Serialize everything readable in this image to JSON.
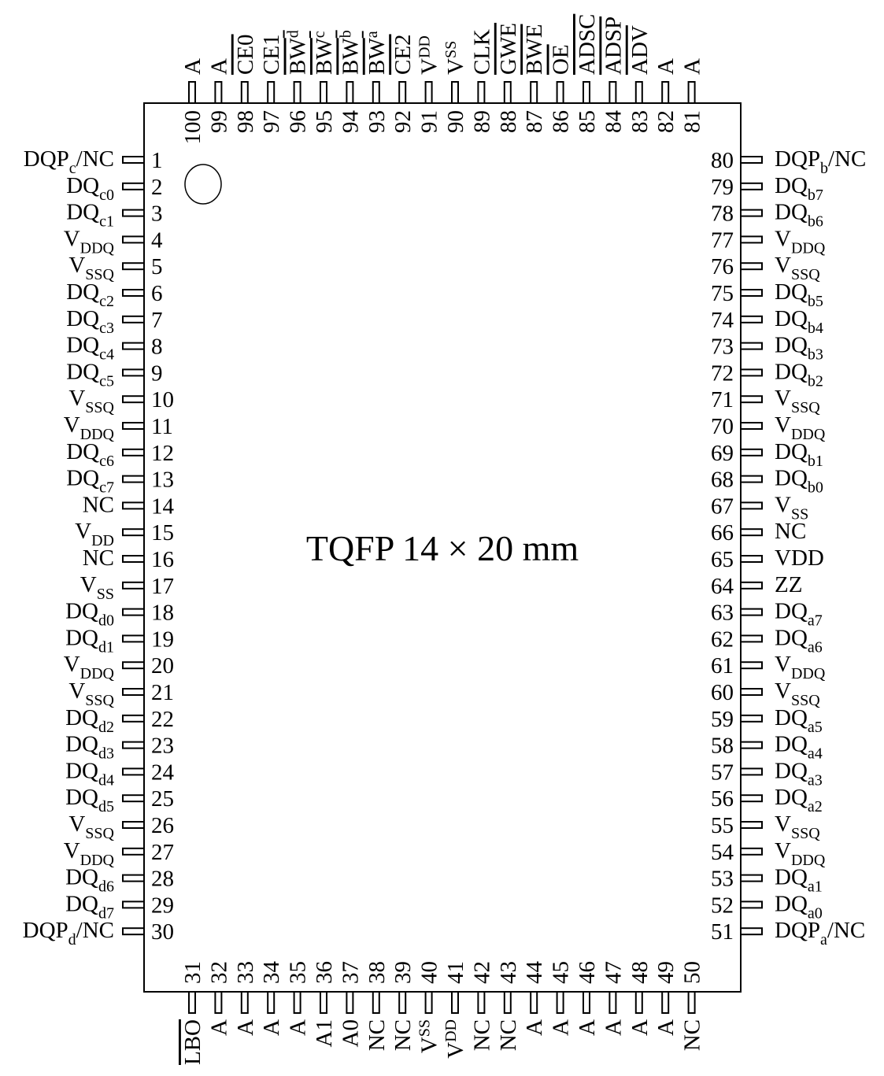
{
  "package_label": "TQFP 14 × 20 mm",
  "pins": {
    "left": [
      {
        "n": "1",
        "name": [
          [
            "DQP",
            ""
          ],
          [
            "c",
            "sub"
          ],
          [
            "/NC",
            ""
          ]
        ]
      },
      {
        "n": "2",
        "name": [
          [
            "DQ",
            ""
          ],
          [
            "c0",
            "sub"
          ]
        ]
      },
      {
        "n": "3",
        "name": [
          [
            "DQ",
            ""
          ],
          [
            "c1",
            "sub"
          ]
        ]
      },
      {
        "n": "4",
        "name": [
          [
            "V",
            ""
          ],
          [
            "DDQ",
            "sub"
          ]
        ]
      },
      {
        "n": "5",
        "name": [
          [
            "V",
            ""
          ],
          [
            "SSQ",
            "sub"
          ]
        ]
      },
      {
        "n": "6",
        "name": [
          [
            "DQ",
            ""
          ],
          [
            "c2",
            "sub"
          ]
        ]
      },
      {
        "n": "7",
        "name": [
          [
            "DQ",
            ""
          ],
          [
            "c3",
            "sub"
          ]
        ]
      },
      {
        "n": "8",
        "name": [
          [
            "DQ",
            ""
          ],
          [
            "c4",
            "sub"
          ]
        ]
      },
      {
        "n": "9",
        "name": [
          [
            "DQ",
            ""
          ],
          [
            "c5",
            "sub"
          ]
        ]
      },
      {
        "n": "10",
        "name": [
          [
            "V",
            ""
          ],
          [
            "SSQ",
            "sub"
          ]
        ]
      },
      {
        "n": "11",
        "name": [
          [
            "V",
            ""
          ],
          [
            "DDQ",
            "sub"
          ]
        ]
      },
      {
        "n": "12",
        "name": [
          [
            "DQ",
            ""
          ],
          [
            "c6",
            "sub"
          ]
        ]
      },
      {
        "n": "13",
        "name": [
          [
            "DQ",
            ""
          ],
          [
            "c7",
            "sub"
          ]
        ]
      },
      {
        "n": "14",
        "name": [
          [
            "NC",
            ""
          ]
        ]
      },
      {
        "n": "15",
        "name": [
          [
            "V",
            ""
          ],
          [
            "DD",
            "sub"
          ]
        ]
      },
      {
        "n": "16",
        "name": [
          [
            "NC",
            ""
          ]
        ]
      },
      {
        "n": "17",
        "name": [
          [
            "V",
            ""
          ],
          [
            "SS",
            "sub"
          ]
        ]
      },
      {
        "n": "18",
        "name": [
          [
            "DQ",
            ""
          ],
          [
            "d0",
            "sub"
          ]
        ]
      },
      {
        "n": "19",
        "name": [
          [
            "DQ",
            ""
          ],
          [
            "d1",
            "sub"
          ]
        ]
      },
      {
        "n": "20",
        "name": [
          [
            "V",
            ""
          ],
          [
            "DDQ",
            "sub"
          ]
        ]
      },
      {
        "n": "21",
        "name": [
          [
            "V",
            ""
          ],
          [
            "SSQ",
            "sub"
          ]
        ]
      },
      {
        "n": "22",
        "name": [
          [
            "DQ",
            ""
          ],
          [
            "d2",
            "sub"
          ]
        ]
      },
      {
        "n": "23",
        "name": [
          [
            "DQ",
            ""
          ],
          [
            "d3",
            "sub"
          ]
        ]
      },
      {
        "n": "24",
        "name": [
          [
            "DQ",
            ""
          ],
          [
            "d4",
            "sub"
          ]
        ]
      },
      {
        "n": "25",
        "name": [
          [
            "DQ",
            ""
          ],
          [
            "d5",
            "sub"
          ]
        ]
      },
      {
        "n": "26",
        "name": [
          [
            "V",
            ""
          ],
          [
            "SSQ",
            "sub"
          ]
        ]
      },
      {
        "n": "27",
        "name": [
          [
            "V",
            ""
          ],
          [
            "DDQ",
            "sub"
          ]
        ]
      },
      {
        "n": "28",
        "name": [
          [
            "DQ",
            ""
          ],
          [
            "d6",
            "sub"
          ]
        ]
      },
      {
        "n": "29",
        "name": [
          [
            "DQ",
            ""
          ],
          [
            "d7",
            "sub"
          ]
        ]
      },
      {
        "n": "30",
        "name": [
          [
            "DQP",
            ""
          ],
          [
            "d",
            "sub"
          ],
          [
            "/NC",
            ""
          ]
        ]
      }
    ],
    "right": [
      {
        "n": "80",
        "name": [
          [
            "DQP",
            ""
          ],
          [
            "b",
            "sub"
          ],
          [
            "/NC",
            ""
          ]
        ]
      },
      {
        "n": "79",
        "name": [
          [
            "DQ",
            ""
          ],
          [
            "b7",
            "sub"
          ]
        ]
      },
      {
        "n": "78",
        "name": [
          [
            "DQ",
            ""
          ],
          [
            "b6",
            "sub"
          ]
        ]
      },
      {
        "n": "77",
        "name": [
          [
            "V",
            ""
          ],
          [
            "DDQ",
            "sub"
          ]
        ]
      },
      {
        "n": "76",
        "name": [
          [
            "V",
            ""
          ],
          [
            "SSQ",
            "sub"
          ]
        ]
      },
      {
        "n": "75",
        "name": [
          [
            "DQ",
            ""
          ],
          [
            "b5",
            "sub"
          ]
        ]
      },
      {
        "n": "74",
        "name": [
          [
            "DQ",
            ""
          ],
          [
            "b4",
            "sub"
          ]
        ]
      },
      {
        "n": "73",
        "name": [
          [
            "DQ",
            ""
          ],
          [
            "b3",
            "sub"
          ]
        ]
      },
      {
        "n": "72",
        "name": [
          [
            "DQ",
            ""
          ],
          [
            "b2",
            "sub"
          ]
        ]
      },
      {
        "n": "71",
        "name": [
          [
            "V",
            ""
          ],
          [
            "SSQ",
            "sub"
          ]
        ]
      },
      {
        "n": "70",
        "name": [
          [
            "V",
            ""
          ],
          [
            "DDQ",
            "sub"
          ]
        ]
      },
      {
        "n": "69",
        "name": [
          [
            "DQ",
            ""
          ],
          [
            "b1",
            "sub"
          ]
        ]
      },
      {
        "n": "68",
        "name": [
          [
            "DQ",
            ""
          ],
          [
            "b0",
            "sub"
          ]
        ]
      },
      {
        "n": "67",
        "name": [
          [
            "V",
            ""
          ],
          [
            "SS",
            "sub"
          ]
        ]
      },
      {
        "n": "66",
        "name": [
          [
            "NC",
            ""
          ]
        ]
      },
      {
        "n": "65",
        "name": [
          [
            "VDD",
            ""
          ]
        ]
      },
      {
        "n": "64",
        "name": [
          [
            "ZZ",
            ""
          ]
        ]
      },
      {
        "n": "63",
        "name": [
          [
            "DQ",
            ""
          ],
          [
            "a7",
            "sub"
          ]
        ]
      },
      {
        "n": "62",
        "name": [
          [
            "DQ",
            ""
          ],
          [
            "a6",
            "sub"
          ]
        ]
      },
      {
        "n": "61",
        "name": [
          [
            "V",
            ""
          ],
          [
            "DDQ",
            "sub"
          ]
        ]
      },
      {
        "n": "60",
        "name": [
          [
            "V",
            ""
          ],
          [
            "SSQ",
            "sub"
          ]
        ]
      },
      {
        "n": "59",
        "name": [
          [
            "DQ",
            ""
          ],
          [
            "a5",
            "sub"
          ]
        ]
      },
      {
        "n": "58",
        "name": [
          [
            "DQ",
            ""
          ],
          [
            "a4",
            "sub"
          ]
        ]
      },
      {
        "n": "57",
        "name": [
          [
            "DQ",
            ""
          ],
          [
            "a3",
            "sub"
          ]
        ]
      },
      {
        "n": "56",
        "name": [
          [
            "DQ",
            ""
          ],
          [
            "a2",
            "sub"
          ]
        ]
      },
      {
        "n": "55",
        "name": [
          [
            "V",
            ""
          ],
          [
            "SSQ",
            "sub"
          ]
        ]
      },
      {
        "n": "54",
        "name": [
          [
            "V",
            ""
          ],
          [
            "DDQ",
            "sub"
          ]
        ]
      },
      {
        "n": "53",
        "name": [
          [
            "DQ",
            ""
          ],
          [
            "a1",
            "sub"
          ]
        ]
      },
      {
        "n": "52",
        "name": [
          [
            "DQ",
            ""
          ],
          [
            "a0",
            "sub"
          ]
        ]
      },
      {
        "n": "51",
        "name": [
          [
            "DQP",
            ""
          ],
          [
            "a",
            "sub"
          ],
          [
            "/NC",
            ""
          ]
        ]
      }
    ],
    "top": [
      {
        "n": "100",
        "name": [
          [
            "A",
            ""
          ]
        ]
      },
      {
        "n": "99",
        "name": [
          [
            "A",
            ""
          ]
        ]
      },
      {
        "n": "98",
        "name": [
          [
            "CE0",
            ""
          ]
        ],
        "bar": true
      },
      {
        "n": "97",
        "name": [
          [
            "CE1",
            ""
          ]
        ]
      },
      {
        "n": "96",
        "name": [
          [
            "BW",
            ""
          ],
          [
            "d",
            "sup"
          ]
        ],
        "bar": true
      },
      {
        "n": "95",
        "name": [
          [
            "BW",
            ""
          ],
          [
            "c",
            "sup"
          ]
        ],
        "bar": true
      },
      {
        "n": "94",
        "name": [
          [
            "BW",
            ""
          ],
          [
            "b",
            "sup"
          ]
        ],
        "bar": true
      },
      {
        "n": "93",
        "name": [
          [
            "BW",
            ""
          ],
          [
            "a",
            "sup"
          ]
        ],
        "bar": true
      },
      {
        "n": "92",
        "name": [
          [
            "CE2",
            ""
          ]
        ],
        "bar": true
      },
      {
        "n": "91",
        "name": [
          [
            "V",
            ""
          ],
          [
            "DD",
            "sup"
          ]
        ]
      },
      {
        "n": "90",
        "name": [
          [
            "V",
            ""
          ],
          [
            "SS",
            "sup"
          ]
        ]
      },
      {
        "n": "89",
        "name": [
          [
            "CLK",
            ""
          ]
        ]
      },
      {
        "n": "88",
        "name": [
          [
            "GWE",
            ""
          ]
        ],
        "bar": true
      },
      {
        "n": "87",
        "name": [
          [
            "BWE",
            ""
          ]
        ],
        "bar": true
      },
      {
        "n": "86",
        "name": [
          [
            "OE",
            ""
          ]
        ],
        "bar": true
      },
      {
        "n": "85",
        "name": [
          [
            "ADSC",
            ""
          ]
        ],
        "bar": true
      },
      {
        "n": "84",
        "name": [
          [
            "ADSP",
            ""
          ]
        ],
        "bar": true
      },
      {
        "n": "83",
        "name": [
          [
            "ADV",
            ""
          ]
        ],
        "bar": true
      },
      {
        "n": "82",
        "name": [
          [
            "A",
            ""
          ]
        ]
      },
      {
        "n": "81",
        "name": [
          [
            "A",
            ""
          ]
        ]
      }
    ],
    "bottom": [
      {
        "n": "31",
        "name": [
          [
            "LBO",
            ""
          ]
        ],
        "bar": true
      },
      {
        "n": "32",
        "name": [
          [
            "A",
            ""
          ]
        ]
      },
      {
        "n": "33",
        "name": [
          [
            "A",
            ""
          ]
        ]
      },
      {
        "n": "34",
        "name": [
          [
            "A",
            ""
          ]
        ]
      },
      {
        "n": "35",
        "name": [
          [
            "A",
            ""
          ]
        ]
      },
      {
        "n": "36",
        "name": [
          [
            "A1",
            ""
          ]
        ]
      },
      {
        "n": "37",
        "name": [
          [
            "A0",
            ""
          ]
        ]
      },
      {
        "n": "38",
        "name": [
          [
            "NC",
            ""
          ]
        ]
      },
      {
        "n": "39",
        "name": [
          [
            "NC",
            ""
          ]
        ]
      },
      {
        "n": "40",
        "name": [
          [
            "V",
            ""
          ],
          [
            "SS",
            "sup"
          ]
        ]
      },
      {
        "n": "41",
        "name": [
          [
            "V",
            ""
          ],
          [
            "DD",
            "sup"
          ]
        ]
      },
      {
        "n": "42",
        "name": [
          [
            "NC",
            ""
          ]
        ]
      },
      {
        "n": "43",
        "name": [
          [
            "NC",
            ""
          ]
        ]
      },
      {
        "n": "44",
        "name": [
          [
            "A",
            ""
          ]
        ]
      },
      {
        "n": "45",
        "name": [
          [
            "A",
            ""
          ]
        ]
      },
      {
        "n": "46",
        "name": [
          [
            "A",
            ""
          ]
        ]
      },
      {
        "n": "47",
        "name": [
          [
            "A",
            ""
          ]
        ]
      },
      {
        "n": "48",
        "name": [
          [
            "A",
            ""
          ]
        ]
      },
      {
        "n": "49",
        "name": [
          [
            "A",
            ""
          ]
        ]
      },
      {
        "n": "50",
        "name": [
          [
            "NC",
            ""
          ]
        ]
      }
    ]
  }
}
